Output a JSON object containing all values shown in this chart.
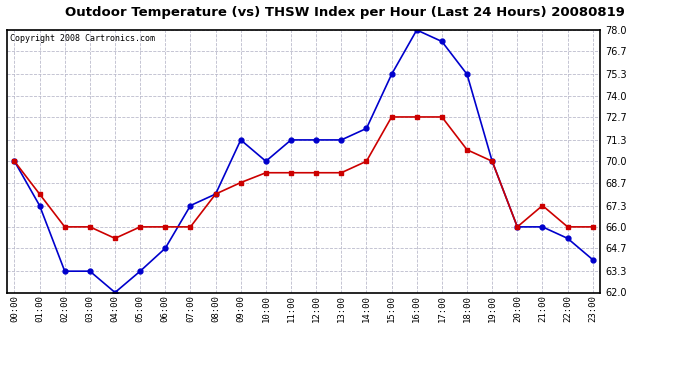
{
  "title": "Outdoor Temperature (vs) THSW Index per Hour (Last 24 Hours) 20080819",
  "copyright": "Copyright 2008 Cartronics.com",
  "hours": [
    0,
    1,
    2,
    3,
    4,
    5,
    6,
    7,
    8,
    9,
    10,
    11,
    12,
    13,
    14,
    15,
    16,
    17,
    18,
    19,
    20,
    21,
    22,
    23
  ],
  "temp": [
    70.0,
    68.0,
    66.0,
    66.0,
    65.3,
    66.0,
    66.0,
    66.0,
    68.0,
    68.7,
    69.3,
    69.3,
    69.3,
    69.3,
    70.0,
    72.7,
    72.7,
    72.7,
    70.7,
    70.0,
    66.0,
    67.3,
    66.0,
    66.0
  ],
  "thsw": [
    70.0,
    67.3,
    63.3,
    63.3,
    62.0,
    63.3,
    64.7,
    67.3,
    68.0,
    71.3,
    70.0,
    71.3,
    71.3,
    71.3,
    72.0,
    75.3,
    78.0,
    77.3,
    75.3,
    70.0,
    66.0,
    66.0,
    65.3,
    64.0
  ],
  "ylim": [
    62.0,
    78.0
  ],
  "yticks": [
    62.0,
    63.3,
    64.7,
    66.0,
    67.3,
    68.7,
    70.0,
    71.3,
    72.7,
    74.0,
    75.3,
    76.7,
    78.0
  ],
  "temp_color": "#cc0000",
  "thsw_color": "#0000cc",
  "grid_color": "#bbbbcc",
  "bg_color": "#ffffff",
  "plot_bg_color": "#ffffff"
}
